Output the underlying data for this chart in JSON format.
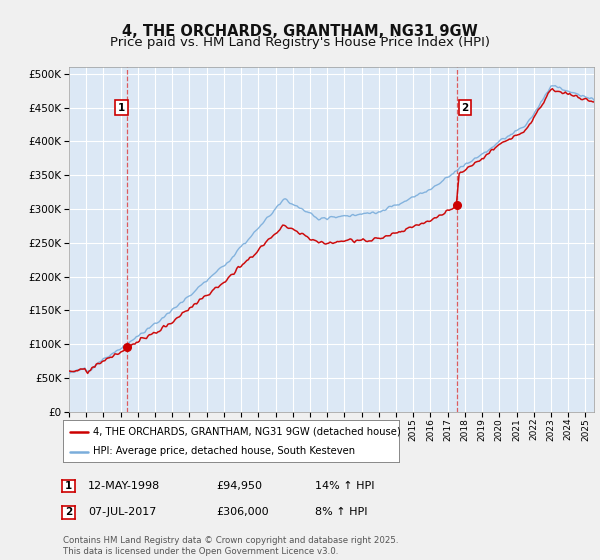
{
  "title": "4, THE ORCHARDS, GRANTHAM, NG31 9GW",
  "subtitle": "Price paid vs. HM Land Registry's House Price Index (HPI)",
  "ylim": [
    0,
    510000
  ],
  "yticks": [
    0,
    50000,
    100000,
    150000,
    200000,
    250000,
    300000,
    350000,
    400000,
    450000,
    500000
  ],
  "xlim_start": 1995.0,
  "xlim_end": 2025.5,
  "bg_color": "#dce8f5",
  "fig_bg_color": "#f0f0f0",
  "grid_color": "#ffffff",
  "sale1_x": 1998.36,
  "sale1_y": 94950,
  "sale2_x": 2017.52,
  "sale2_y": 306000,
  "line_color_red": "#cc0000",
  "line_color_blue": "#7aaddb",
  "dashed_line_color": "#dd4444",
  "legend_label_red": "4, THE ORCHARDS, GRANTHAM, NG31 9GW (detached house)",
  "legend_label_blue": "HPI: Average price, detached house, South Kesteven",
  "annotation1_date": "12-MAY-1998",
  "annotation1_price": "£94,950",
  "annotation1_hpi": "14% ↑ HPI",
  "annotation2_date": "07-JUL-2017",
  "annotation2_price": "£306,000",
  "annotation2_hpi": "8% ↑ HPI",
  "footer": "Contains HM Land Registry data © Crown copyright and database right 2025.\nThis data is licensed under the Open Government Licence v3.0.",
  "title_fontsize": 10.5,
  "subtitle_fontsize": 9.5
}
